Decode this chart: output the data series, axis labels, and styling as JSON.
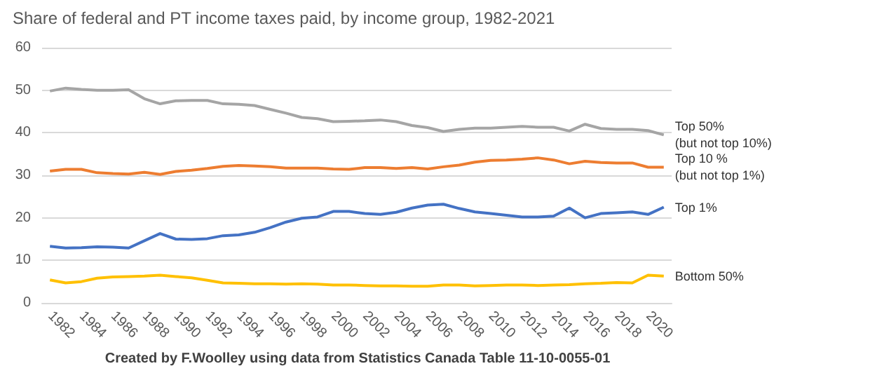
{
  "chart_data": {
    "type": "line",
    "title": "Share of federal and PT income taxes paid, by income group, 1982-2021",
    "categories": [
      "1982",
      null,
      "1984",
      null,
      "1986",
      null,
      "1988",
      null,
      "1990",
      null,
      "1992",
      null,
      "1994",
      null,
      "1996",
      null,
      "1998",
      null,
      "2000",
      null,
      "2002",
      null,
      "2004",
      null,
      "2006",
      null,
      "2008",
      null,
      "2010",
      null,
      "2012",
      null,
      "2014",
      null,
      "2016",
      null,
      "2018",
      null,
      "2020",
      null
    ],
    "series": [
      {
        "name": "Top 50% (but not top 10%)",
        "color": "#a5a5a5",
        "values": [
          49.8,
          50.5,
          50.2,
          50,
          50,
          50.1,
          48,
          46.8,
          47.5,
          47.6,
          47.6,
          46.8,
          46.7,
          46.4,
          45.5,
          44.6,
          43.6,
          43.3,
          42.6,
          42.7,
          42.8,
          43,
          42.6,
          41.7,
          41.2,
          40.3,
          40.8,
          41.1,
          41.1,
          41.3,
          41.5,
          41.3,
          41.3,
          40.4,
          42,
          41,
          40.8,
          40.8,
          40.5,
          39.5
        ]
      },
      {
        "name": "Top 10 % (but not top 1%)",
        "color": "#ed7d31",
        "values": [
          31,
          31.4,
          31.4,
          30.6,
          30.4,
          30.3,
          30.7,
          30.2,
          30.9,
          31.2,
          31.6,
          32.1,
          32.3,
          32.2,
          32,
          31.7,
          31.7,
          31.7,
          31.5,
          31.4,
          31.8,
          31.8,
          31.6,
          31.8,
          31.5,
          32,
          32.4,
          33.1,
          33.5,
          33.6,
          33.8,
          34.1,
          33.6,
          32.7,
          33.3,
          33,
          32.9,
          32.9,
          31.9,
          31.9
        ]
      },
      {
        "name": "Top 1%",
        "color": "#4472c4",
        "values": [
          13.3,
          12.9,
          13,
          13.2,
          13.1,
          12.9,
          14.6,
          16.3,
          15,
          14.9,
          15.1,
          15.8,
          16,
          16.6,
          17.7,
          19,
          19.9,
          20.2,
          21.5,
          21.5,
          21,
          20.8,
          21.3,
          22.3,
          23,
          23.2,
          22.2,
          21.4,
          21,
          20.6,
          20.2,
          20.2,
          20.4,
          22.3,
          20,
          21,
          21.2,
          21.4,
          20.8,
          22.5
        ]
      },
      {
        "name": "Bottom 50%",
        "color": "#ffc000",
        "values": [
          5.4,
          4.7,
          5,
          5.8,
          6.1,
          6.2,
          6.3,
          6.5,
          6.2,
          5.9,
          5.3,
          4.7,
          4.6,
          4.5,
          4.5,
          4.4,
          4.5,
          4.4,
          4.2,
          4.2,
          4.1,
          4,
          4,
          3.9,
          3.9,
          4.2,
          4.2,
          4,
          4.1,
          4.2,
          4.2,
          4.1,
          4.2,
          4.3,
          4.5,
          4.6,
          4.8,
          4.7,
          6.5,
          6.3
        ]
      }
    ],
    "ylim": [
      0,
      60
    ],
    "yticks": [
      0,
      10,
      20,
      30,
      40,
      50,
      60
    ],
    "grid": "y",
    "legend": false,
    "marker": "none",
    "line_style": "solid",
    "annotations": [
      "Created by F.Woolley using data from Statistics Canada Table 11-10-0055-01"
    ]
  }
}
